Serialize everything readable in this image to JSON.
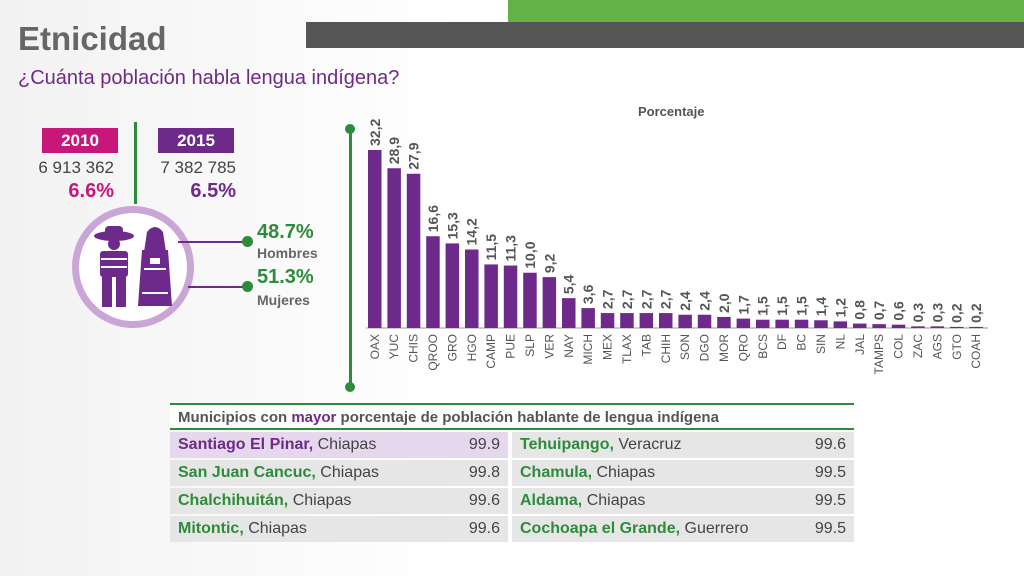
{
  "title": "Etnicidad",
  "subtitle": "¿Cuánta población habla lengua indígena?",
  "census": [
    {
      "year": "2010",
      "population": "6 913 362",
      "percent": "6.6%",
      "color": "#c8177a"
    },
    {
      "year": "2015",
      "population": "7 382 785",
      "percent": "6.5%",
      "color": "#6e2a8a"
    }
  ],
  "gender": {
    "men": {
      "percent": "48.7%",
      "label": "Hombres"
    },
    "women": {
      "percent": "51.3%",
      "label": "Mujeres"
    }
  },
  "icons": [
    "man-indigenous-icon",
    "woman-indigenous-icon"
  ],
  "colors": {
    "accent_green": "#2e8b3a",
    "purple": "#6e2a8a",
    "magenta": "#c8177a"
  },
  "chart_data": {
    "type": "bar",
    "title": "",
    "ylabel": "Porcentaje",
    "xlabel": "",
    "ylim": [
      0,
      35
    ],
    "bar_color": "#6e2a8a",
    "categories": [
      "OAX",
      "YUC",
      "CHIS",
      "QROO",
      "GRO",
      "HGO",
      "CAMP",
      "PUE",
      "SLP",
      "VER",
      "NAY",
      "MICH",
      "MEX",
      "TLAX",
      "TAB",
      "CHIH",
      "SON",
      "DGO",
      "MOR",
      "QRO",
      "BCS",
      "DF",
      "BC",
      "SIN",
      "NL",
      "JAL",
      "TAMPS",
      "COL",
      "ZAC",
      "AGS",
      "GTO",
      "COAH"
    ],
    "values": [
      32.2,
      28.9,
      27.9,
      16.6,
      15.3,
      14.2,
      11.5,
      11.3,
      10.0,
      9.2,
      5.4,
      3.6,
      2.7,
      2.7,
      2.7,
      2.7,
      2.4,
      2.4,
      2.0,
      1.7,
      1.5,
      1.5,
      1.5,
      1.4,
      1.2,
      0.8,
      0.7,
      0.6,
      0.3,
      0.3,
      0.2,
      0.2
    ],
    "value_labels": [
      "32,2",
      "28,9",
      "27,9",
      "16,6",
      "15,3",
      "14,2",
      "11,5",
      "11,3",
      "10,0",
      "9,2",
      "5,4",
      "3,6",
      "2,7",
      "2,7",
      "2,7",
      "2,7",
      "2,4",
      "2,4",
      "2,0",
      "1,7",
      "1,5",
      "1,5",
      "1,5",
      "1,4",
      "1,2",
      "0,8",
      "0,7",
      "0,6",
      "0,3",
      "0,3",
      "0,2",
      "0,2"
    ]
  },
  "table": {
    "header_prefix": "Municipios con",
    "header_bold": "mayor",
    "header_suffix": "porcentaje de población hablante de lengua indígena",
    "rows": [
      [
        {
          "muni": "Santiago El Pinar,",
          "state": "Chiapas",
          "value": "99.9"
        },
        {
          "muni": "Tehuipango,",
          "state": "Veracruz",
          "value": "99.6"
        }
      ],
      [
        {
          "muni": "San Juan Cancuc,",
          "state": "Chiapas",
          "value": "99.8"
        },
        {
          "muni": "Chamula,",
          "state": "Chiapas",
          "value": "99.5"
        }
      ],
      [
        {
          "muni": "Chalchihuitán,",
          "state": "Chiapas",
          "value": "99.6"
        },
        {
          "muni": "Aldama,",
          "state": "Chiapas",
          "value": "99.5"
        }
      ],
      [
        {
          "muni": "Mitontic,",
          "state": "Chiapas",
          "value": "99.6"
        },
        {
          "muni": "Cochoapa el Grande,",
          "state": "Guerrero",
          "value": "99.5"
        }
      ]
    ]
  }
}
